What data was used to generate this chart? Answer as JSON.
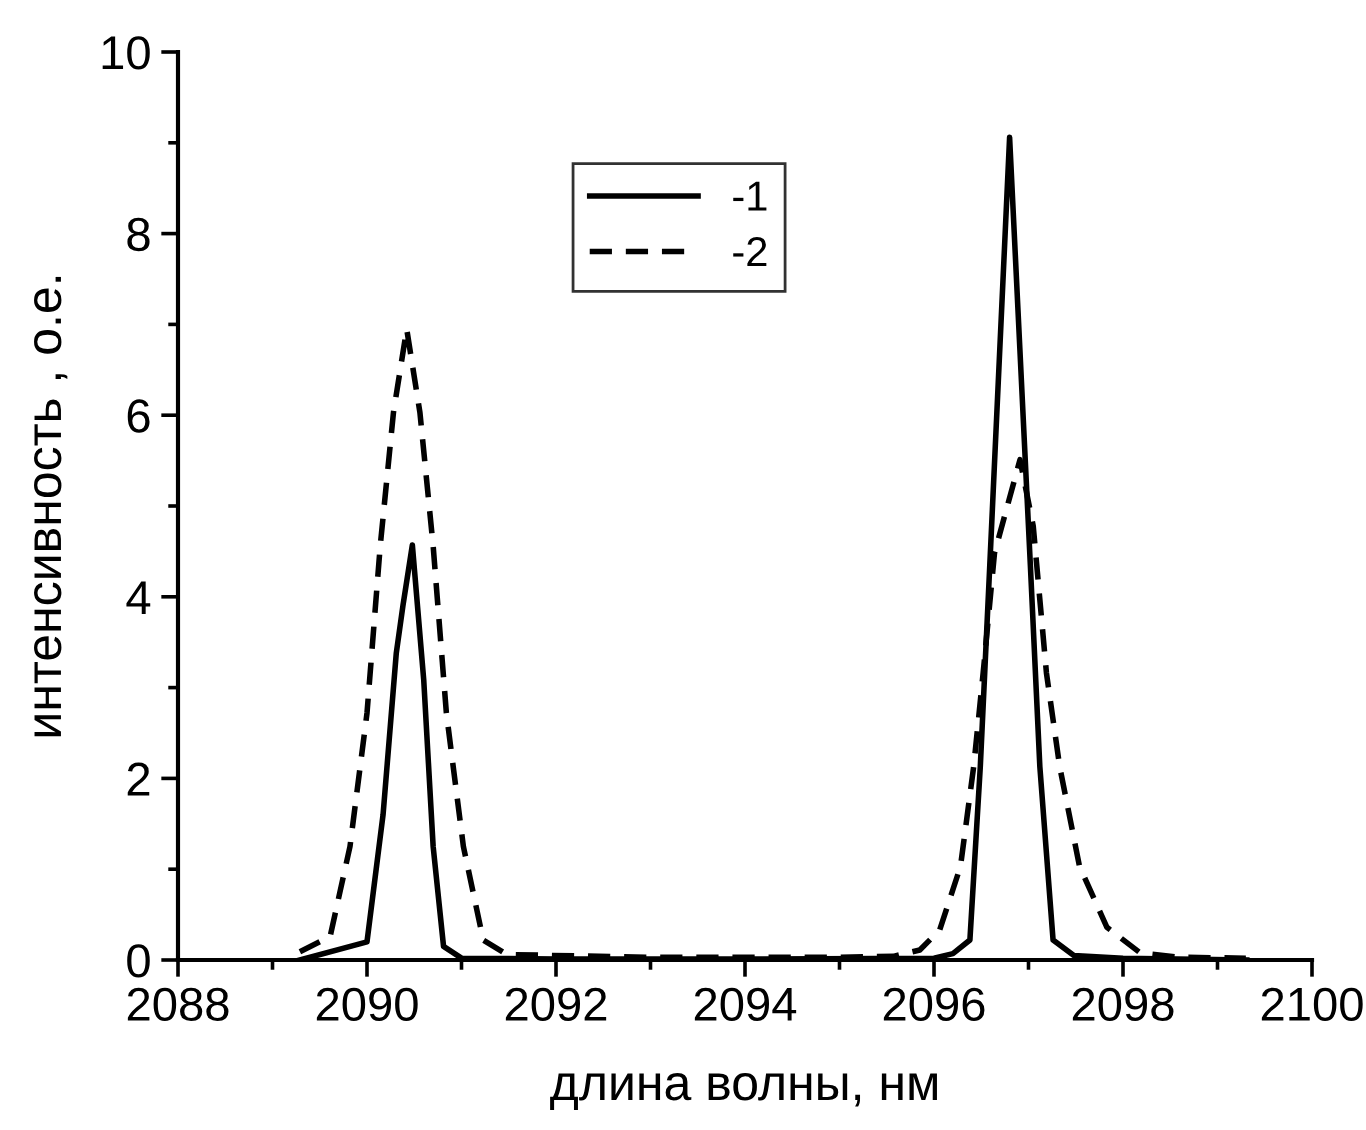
{
  "chart_data": {
    "type": "line",
    "xlabel": "длина волны, нм",
    "ylabel": "интенсивность , о.е.",
    "xlim": [
      2088,
      2100
    ],
    "xticks": [
      2088,
      2090,
      2092,
      2094,
      2096,
      2098,
      2100
    ],
    "ylim": [
      0,
      10
    ],
    "yticks": [
      0,
      2,
      4,
      6,
      8,
      10
    ],
    "grid": false,
    "legend": "top",
    "marker": "none",
    "series": [
      {
        "name": "-1",
        "color": "#000000",
        "line_style": "solid",
        "x": [
          2089.29,
          2090.0,
          2090.17,
          2090.31,
          2090.38,
          2090.48,
          2090.6,
          2090.7,
          2090.81,
          2091.0,
          2092.0,
          2094.0,
          2096.0,
          2096.2,
          2096.38,
          2096.49,
          2096.59,
          2096.8,
          2097.02,
          2097.12,
          2097.26,
          2097.48,
          2098.0,
          2099.31
        ],
        "values": [
          0.0,
          0.2,
          1.6,
          3.38,
          3.9,
          4.57,
          3.09,
          1.25,
          0.15,
          0.02,
          0.01,
          0.01,
          0.02,
          0.07,
          0.22,
          2.13,
          4.34,
          9.06,
          4.34,
          2.13,
          0.22,
          0.05,
          0.02,
          0.0
        ]
      },
      {
        "name": "-2",
        "color": "#000000",
        "line_style": "dashed",
        "x": [
          2089.29,
          2089.61,
          2089.82,
          2090.0,
          2090.14,
          2090.28,
          2090.42,
          2090.56,
          2090.7,
          2090.84,
          2091.02,
          2091.23,
          2091.48,
          2093.0,
          2095.0,
          2095.57,
          2095.85,
          2096.06,
          2096.28,
          2096.42,
          2096.52,
          2096.64,
          2096.91,
          2097.05,
          2097.19,
          2097.33,
          2097.54,
          2097.83,
          2098.18,
          2098.6,
          2099.3
        ],
        "values": [
          0.09,
          0.26,
          1.25,
          2.72,
          4.56,
          6.03,
          6.95,
          6.03,
          4.56,
          2.72,
          1.25,
          0.22,
          0.06,
          0.03,
          0.03,
          0.04,
          0.11,
          0.33,
          1.03,
          2.13,
          3.16,
          4.48,
          5.51,
          4.78,
          3.16,
          2.13,
          1.03,
          0.36,
          0.08,
          0.03,
          0.02
        ]
      }
    ]
  }
}
